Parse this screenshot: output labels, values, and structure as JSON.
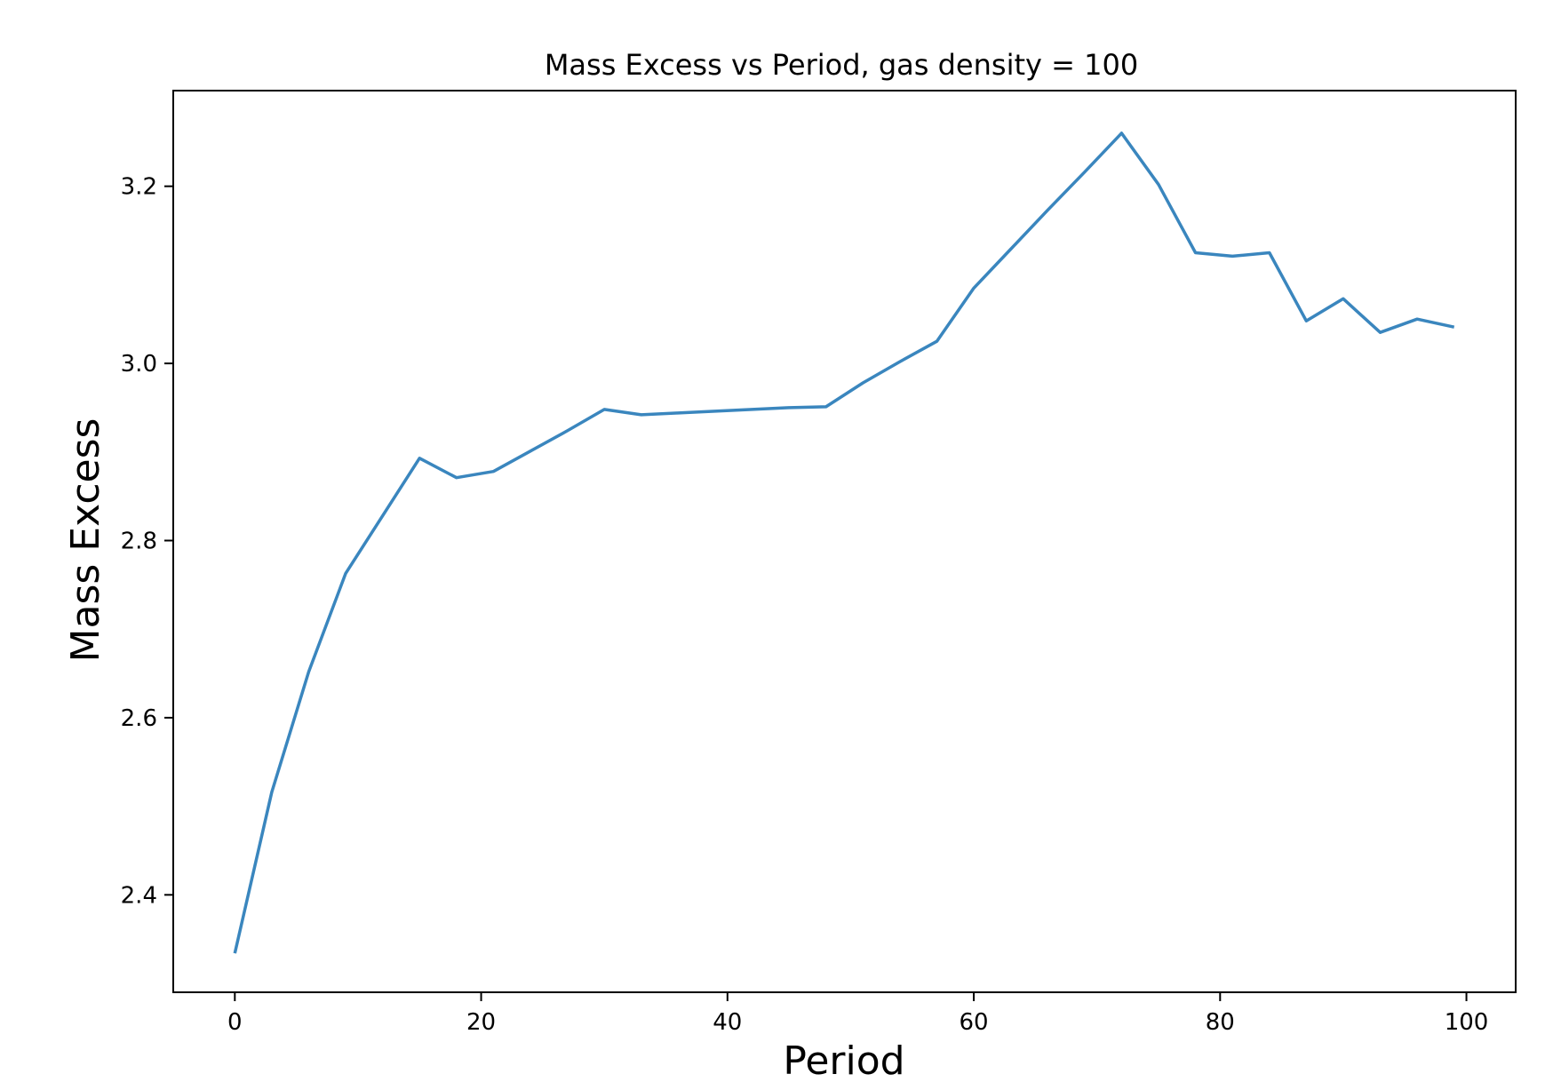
{
  "chart_data": {
    "type": "line",
    "title": "Mass Excess vs Period, gas density = 100",
    "xlabel": "Period",
    "ylabel": "Mass Excess",
    "xlim": [
      -5,
      104
    ],
    "ylim": [
      2.29,
      3.308
    ],
    "xticks": [
      0,
      20,
      40,
      60,
      80,
      100
    ],
    "xtick_labels": [
      "0",
      "20",
      "40",
      "60",
      "80",
      "100"
    ],
    "yticks": [
      2.4,
      2.6,
      2.8,
      3.0,
      3.2
    ],
    "ytick_labels": [
      "2.4",
      "2.6",
      "2.8",
      "3.0",
      "3.2"
    ],
    "grid": false,
    "color": "#3a86be",
    "x": [
      0,
      3,
      6,
      9,
      12,
      15,
      18,
      21,
      24,
      27,
      30,
      33,
      36,
      39,
      42,
      45,
      48,
      51,
      54,
      57,
      60,
      63,
      66,
      69,
      72,
      75,
      78,
      81,
      84,
      87,
      90,
      93,
      96,
      99
    ],
    "y": [
      2.334,
      2.516,
      2.652,
      2.763,
      2.828,
      2.893,
      2.871,
      2.878,
      2.901,
      2.924,
      2.948,
      2.942,
      2.944,
      2.946,
      2.948,
      2.95,
      2.951,
      2.978,
      3.002,
      3.025,
      3.085,
      3.129,
      3.173,
      3.216,
      3.26,
      3.202,
      3.125,
      3.121,
      3.125,
      3.048,
      3.073,
      3.035,
      3.05,
      3.041
    ]
  }
}
